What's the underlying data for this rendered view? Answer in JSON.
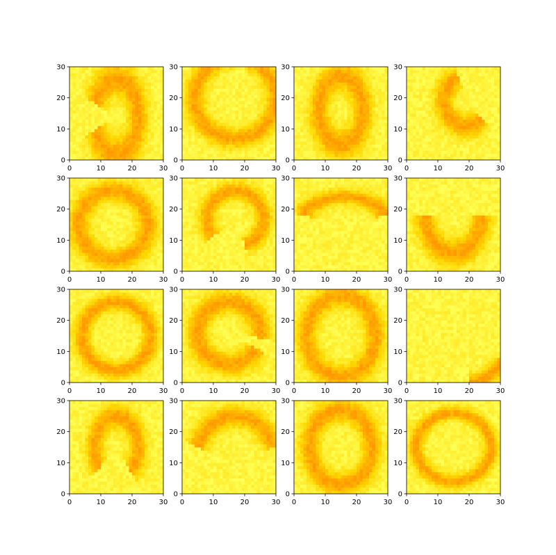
{
  "figure": {
    "colors": {
      "background": "#ffffc0",
      "low": "#ffff55",
      "mid": "#ffd700",
      "high": "#ff9900",
      "axis": "#000000"
    }
  },
  "chart_data": {
    "type": "heatmap",
    "layout": "grid",
    "rows": 4,
    "cols": 4,
    "xlim": [
      0,
      30
    ],
    "ylim": [
      0,
      30
    ],
    "xticks": [
      0,
      10,
      20,
      30
    ],
    "yticks": [
      0,
      10,
      20,
      30
    ],
    "grid": false,
    "colormap": "autumn_r",
    "pixel_grid": [
      30,
      30
    ],
    "panels": [
      {
        "shape": "arc",
        "cx": 15,
        "cy": 14,
        "rx": 7,
        "ry": 12,
        "a0": -160,
        "a1": 160,
        "w": 2.2
      },
      {
        "shape": "arc",
        "cx": 17,
        "cy": 20,
        "rx": 13,
        "ry": 13,
        "a0": 90,
        "a1": 430,
        "w": 2.2
      },
      {
        "shape": "ring",
        "cx": 15,
        "cy": 16,
        "rx": 7,
        "ry": 11,
        "w": 2.2
      },
      {
        "shape": "arc",
        "cx": 19,
        "cy": 19,
        "rx": 7,
        "ry": 8,
        "a0": 110,
        "a1": 315,
        "w": 2.2
      },
      {
        "shape": "ring",
        "cx": 14,
        "cy": 15,
        "rx": 11,
        "ry": 11,
        "w": 2.3
      },
      {
        "shape": "arc",
        "cx": 17,
        "cy": 17,
        "rx": 9,
        "ry": 9,
        "a0": -70,
        "a1": 220,
        "w": 1.9
      },
      {
        "shape": "arc",
        "cx": 16,
        "cy": 15,
        "rx": 14,
        "ry": 9,
        "a0": 20,
        "a1": 160,
        "w": 1.6
      },
      {
        "shape": "arc",
        "cx": 15,
        "cy": 18,
        "rx": 9,
        "ry": 12,
        "a0": 180,
        "a1": 360,
        "w": 2.3
      },
      {
        "shape": "ring",
        "cx": 15,
        "cy": 15,
        "rx": 11,
        "ry": 11,
        "w": 1.9
      },
      {
        "shape": "arc",
        "cx": 15,
        "cy": 16,
        "rx": 10,
        "ry": 10,
        "a0": -10,
        "a1": 330,
        "w": 2.4
      },
      {
        "shape": "ring",
        "cx": 15,
        "cy": 15,
        "rx": 11,
        "ry": 13,
        "w": 2.2
      },
      {
        "shape": "arc",
        "cx": 20,
        "cy": 14,
        "rx": 12,
        "ry": 14,
        "a0": 270,
        "a1": 330,
        "w": 1.7
      },
      {
        "shape": "arc",
        "cx": 15,
        "cy": 15,
        "rx": 7,
        "ry": 10,
        "a0": -50,
        "a1": 220,
        "w": 1.9
      },
      {
        "shape": "arc",
        "cx": 17,
        "cy": 10,
        "rx": 13,
        "ry": 15,
        "a0": 20,
        "a1": 160,
        "w": 2.1
      },
      {
        "shape": "ring",
        "cx": 15,
        "cy": 15,
        "rx": 10,
        "ry": 12,
        "w": 2.2
      },
      {
        "shape": "ring",
        "cx": 15,
        "cy": 15,
        "rx": 12,
        "ry": 11,
        "w": 1.5
      }
    ]
  }
}
